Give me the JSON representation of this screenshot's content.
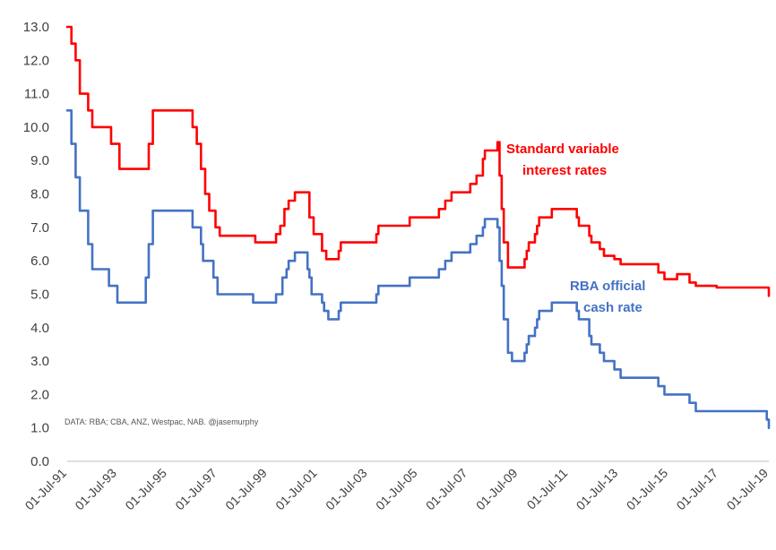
{
  "chart_data": {
    "type": "line",
    "title": "",
    "xlabel": "",
    "ylabel": "",
    "ylim": [
      0,
      13
    ],
    "y_ticks": [
      "0.0",
      "1.0",
      "2.0",
      "3.0",
      "4.0",
      "5.0",
      "6.0",
      "7.0",
      "8.0",
      "9.0",
      "10.0",
      "11.0",
      "12.0",
      "13.0"
    ],
    "x_ticks": [
      "01-Jul-91",
      "01-Jul-93",
      "01-Jul-95",
      "01-Jul-97",
      "01-Jul-99",
      "01-Jul-01",
      "01-Jul-03",
      "01-Jul-05",
      "01-Jul-07",
      "01-Jul-09",
      "01-Jul-11",
      "01-Jul-13",
      "01-Jul-15",
      "01-Jul-17",
      "01-Jul-19"
    ],
    "xlim": [
      "1991-07-01",
      "2019-07-01"
    ],
    "grid": false,
    "series": [
      {
        "name": "Standard variable interest rates",
        "color": "#ff0000",
        "points": [
          [
            "1991-07-01",
            13.0
          ],
          [
            "1991-09-01",
            12.5
          ],
          [
            "1991-11-01",
            12.0
          ],
          [
            "1992-01-01",
            11.0
          ],
          [
            "1992-05-01",
            10.5
          ],
          [
            "1992-07-01",
            10.0
          ],
          [
            "1993-04-01",
            9.5
          ],
          [
            "1993-08-01",
            8.75
          ],
          [
            "1994-08-01",
            8.75
          ],
          [
            "1994-10-01",
            9.5
          ],
          [
            "1994-12-01",
            10.5
          ],
          [
            "1995-01-01",
            10.5
          ],
          [
            "1996-05-01",
            10.5
          ],
          [
            "1996-07-01",
            10.0
          ],
          [
            "1996-09-01",
            9.5
          ],
          [
            "1996-11-01",
            8.75
          ],
          [
            "1997-01-01",
            8.0
          ],
          [
            "1997-03-01",
            7.5
          ],
          [
            "1997-06-01",
            7.0
          ],
          [
            "1997-08-01",
            6.75
          ],
          [
            "1998-12-01",
            6.75
          ],
          [
            "1999-01-01",
            6.55
          ],
          [
            "1999-11-01",
            6.8
          ],
          [
            "2000-01-01",
            7.05
          ],
          [
            "2000-03-01",
            7.55
          ],
          [
            "2000-05-01",
            7.8
          ],
          [
            "2000-08-01",
            8.05
          ],
          [
            "2001-01-01",
            8.05
          ],
          [
            "2001-03-01",
            7.3
          ],
          [
            "2001-05-01",
            6.8
          ],
          [
            "2001-09-01",
            6.3
          ],
          [
            "2001-11-01",
            6.05
          ],
          [
            "2002-05-01",
            6.3
          ],
          [
            "2002-06-01",
            6.55
          ],
          [
            "2003-11-01",
            6.8
          ],
          [
            "2003-12-01",
            7.05
          ],
          [
            "2005-03-01",
            7.3
          ],
          [
            "2006-05-01",
            7.55
          ],
          [
            "2006-08-01",
            7.8
          ],
          [
            "2006-11-01",
            8.05
          ],
          [
            "2007-08-01",
            8.3
          ],
          [
            "2007-11-01",
            8.55
          ],
          [
            "2008-02-01",
            9.05
          ],
          [
            "2008-03-01",
            9.3
          ],
          [
            "2008-09-01",
            9.55
          ],
          [
            "2008-10-01",
            8.55
          ],
          [
            "2008-11-01",
            7.55
          ],
          [
            "2008-12-01",
            6.55
          ],
          [
            "2009-02-01",
            5.8
          ],
          [
            "2009-10-01",
            6.05
          ],
          [
            "2009-11-01",
            6.3
          ],
          [
            "2009-12-01",
            6.55
          ],
          [
            "2010-03-01",
            6.8
          ],
          [
            "2010-04-01",
            7.05
          ],
          [
            "2010-05-01",
            7.3
          ],
          [
            "2010-11-01",
            7.55
          ],
          [
            "2011-11-01",
            7.3
          ],
          [
            "2011-12-01",
            7.05
          ],
          [
            "2012-05-01",
            6.75
          ],
          [
            "2012-06-01",
            6.55
          ],
          [
            "2012-10-01",
            6.35
          ],
          [
            "2012-12-01",
            6.15
          ],
          [
            "2013-05-01",
            6.05
          ],
          [
            "2013-08-01",
            5.9
          ],
          [
            "2015-02-01",
            5.65
          ],
          [
            "2015-05-01",
            5.45
          ],
          [
            "2015-11-01",
            5.6
          ],
          [
            "2016-05-01",
            5.35
          ],
          [
            "2016-08-01",
            5.25
          ],
          [
            "2017-06-01",
            5.2
          ],
          [
            "2019-06-01",
            5.2
          ],
          [
            "2019-07-01",
            4.95
          ]
        ]
      },
      {
        "name": "RBA official cash rate",
        "color": "#4472c4",
        "points": [
          [
            "1991-07-01",
            10.5
          ],
          [
            "1991-09-01",
            9.5
          ],
          [
            "1991-11-01",
            8.5
          ],
          [
            "1992-01-01",
            7.5
          ],
          [
            "1992-05-01",
            6.5
          ],
          [
            "1992-07-01",
            5.75
          ],
          [
            "1993-03-01",
            5.25
          ],
          [
            "1993-07-01",
            4.75
          ],
          [
            "1994-08-01",
            4.75
          ],
          [
            "1994-08-20",
            5.5
          ],
          [
            "1994-10-01",
            6.5
          ],
          [
            "1994-12-01",
            7.5
          ],
          [
            "1996-07-01",
            7.0
          ],
          [
            "1996-11-01",
            6.5
          ],
          [
            "1996-12-01",
            6.0
          ],
          [
            "1997-05-01",
            5.5
          ],
          [
            "1997-07-01",
            5.0
          ],
          [
            "1998-12-01",
            4.75
          ],
          [
            "1999-11-01",
            5.0
          ],
          [
            "2000-02-01",
            5.5
          ],
          [
            "2000-04-01",
            5.75
          ],
          [
            "2000-05-01",
            6.0
          ],
          [
            "2000-08-01",
            6.25
          ],
          [
            "2001-02-01",
            5.75
          ],
          [
            "2001-03-01",
            5.5
          ],
          [
            "2001-04-01",
            5.0
          ],
          [
            "2001-09-01",
            4.75
          ],
          [
            "2001-10-01",
            4.5
          ],
          [
            "2001-12-01",
            4.25
          ],
          [
            "2002-05-01",
            4.5
          ],
          [
            "2002-06-01",
            4.75
          ],
          [
            "2003-11-01",
            5.0
          ],
          [
            "2003-12-01",
            5.25
          ],
          [
            "2005-03-01",
            5.5
          ],
          [
            "2006-05-01",
            5.75
          ],
          [
            "2006-08-01",
            6.0
          ],
          [
            "2006-11-01",
            6.25
          ],
          [
            "2007-08-01",
            6.5
          ],
          [
            "2007-11-01",
            6.75
          ],
          [
            "2008-02-01",
            7.0
          ],
          [
            "2008-03-01",
            7.25
          ],
          [
            "2008-09-01",
            7.0
          ],
          [
            "2008-10-01",
            6.0
          ],
          [
            "2008-11-01",
            5.25
          ],
          [
            "2008-12-01",
            4.25
          ],
          [
            "2009-02-01",
            3.25
          ],
          [
            "2009-04-01",
            3.0
          ],
          [
            "2009-10-01",
            3.25
          ],
          [
            "2009-11-01",
            3.5
          ],
          [
            "2009-12-01",
            3.75
          ],
          [
            "2010-03-01",
            4.0
          ],
          [
            "2010-04-01",
            4.25
          ],
          [
            "2010-05-01",
            4.5
          ],
          [
            "2010-11-01",
            4.75
          ],
          [
            "2011-11-01",
            4.5
          ],
          [
            "2011-12-01",
            4.25
          ],
          [
            "2012-05-01",
            3.75
          ],
          [
            "2012-06-01",
            3.5
          ],
          [
            "2012-10-01",
            3.25
          ],
          [
            "2012-12-01",
            3.0
          ],
          [
            "2013-05-01",
            2.75
          ],
          [
            "2013-08-01",
            2.5
          ],
          [
            "2015-02-01",
            2.25
          ],
          [
            "2015-05-01",
            2.0
          ],
          [
            "2016-05-01",
            1.75
          ],
          [
            "2016-08-01",
            1.5
          ],
          [
            "2019-06-01",
            1.25
          ],
          [
            "2019-07-01",
            1.0
          ]
        ]
      }
    ],
    "annotations": [
      {
        "series": 0,
        "color": "#ff0000",
        "lines": [
          "Standard variable",
          "interest rates"
        ]
      },
      {
        "series": 1,
        "color": "#4472c4",
        "lines": [
          "RBA official",
          "cash rate"
        ]
      }
    ],
    "source_note": "DATA: RBA; CBA, ANZ, Westpac, NAB. @jasemurphy"
  }
}
